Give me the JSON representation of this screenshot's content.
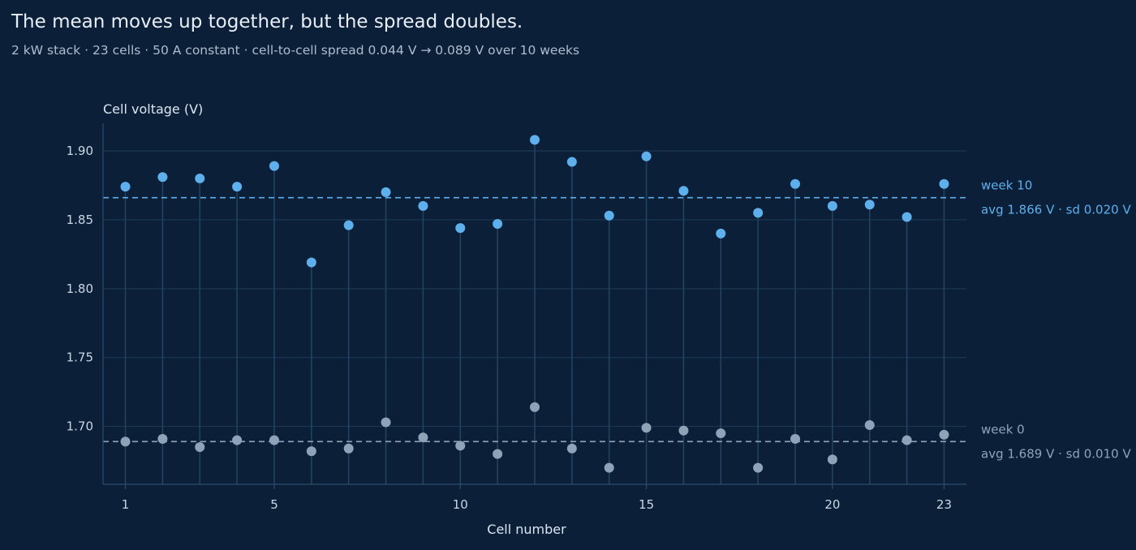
{
  "title": "The mean moves up together, but the spread doubles.",
  "subtitle": "2 kW stack · 23 cells · 50 A constant · cell-to-cell spread 0.044 V → 0.089 V over 10 weeks",
  "colors": {
    "week10": "#5db0ec",
    "week0": "#8fa3b8",
    "background": "#0c1f38"
  },
  "chart_data": {
    "type": "scatter",
    "xlabel": "Cell number",
    "ylabel": "Cell voltage (V)",
    "xlim": [
      0.4,
      23.6
    ],
    "ylim": [
      1.658,
      1.92
    ],
    "xticks": [
      1,
      5,
      10,
      15,
      20,
      23
    ],
    "yticks": [
      1.7,
      1.75,
      1.8,
      1.85,
      1.9
    ],
    "ytick_labels": [
      "1.70",
      "1.75",
      "1.80",
      "1.85",
      "1.90"
    ],
    "grid": "horizontal",
    "x": [
      1,
      2,
      3,
      4,
      5,
      6,
      7,
      8,
      9,
      10,
      11,
      12,
      13,
      14,
      15,
      16,
      17,
      18,
      19,
      20,
      21,
      22,
      23
    ],
    "series": [
      {
        "name": "week 10",
        "values": [
          1.874,
          1.881,
          1.88,
          1.874,
          1.889,
          1.819,
          1.846,
          1.87,
          1.86,
          1.844,
          1.847,
          1.908,
          1.892,
          1.853,
          1.896,
          1.871,
          1.84,
          1.855,
          1.876,
          1.86,
          1.861,
          1.852,
          1.876
        ],
        "mean": 1.866,
        "annotation": "avg 1.866 V · sd 0.020 V"
      },
      {
        "name": "week 0",
        "values": [
          1.689,
          1.691,
          1.685,
          1.69,
          1.69,
          1.682,
          1.684,
          1.703,
          1.692,
          1.686,
          1.68,
          1.714,
          1.684,
          1.67,
          1.699,
          1.697,
          1.695,
          1.67,
          1.691,
          1.676,
          1.701,
          1.69,
          1.694
        ],
        "mean": 1.689,
        "annotation": "avg 1.689 V · sd 0.010 V"
      }
    ]
  }
}
